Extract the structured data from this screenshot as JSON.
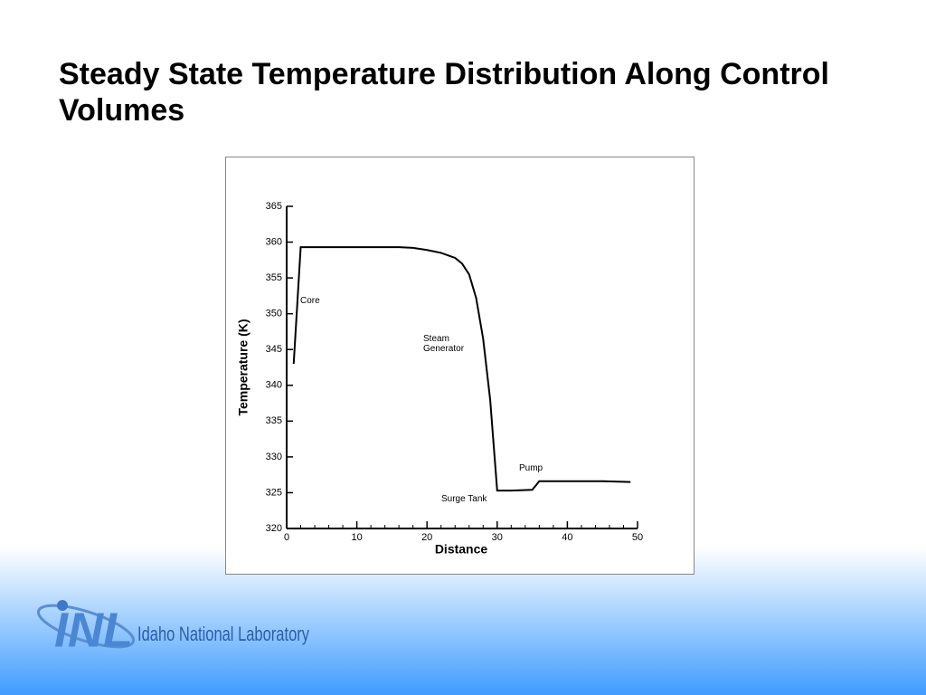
{
  "chart_data": {
    "type": "line",
    "title": "Steady State Temperature Distribution Along Control Volumes",
    "x_label": "Distance",
    "y_label": "Temperature (K)",
    "x": [
      1,
      2,
      4,
      8,
      12,
      16,
      18,
      20,
      22,
      24,
      25,
      26,
      27,
      28,
      29,
      30,
      32,
      35,
      36,
      40,
      45,
      49
    ],
    "values": [
      343,
      359.3,
      359.3,
      359.3,
      359.3,
      359.3,
      359.2,
      358.9,
      358.5,
      357.8,
      357,
      355.5,
      352.2,
      346.5,
      338,
      325.3,
      325.3,
      325.4,
      326.6,
      326.6,
      326.6,
      326.5
    ],
    "color": "#000000",
    "xlim": [
      0,
      50
    ],
    "xticks": [
      0,
      10,
      20,
      30,
      40,
      50
    ],
    "xminorticks": [
      2,
      4,
      6,
      8,
      12,
      14,
      16,
      18,
      22,
      24,
      26,
      28,
      32,
      34,
      36,
      38,
      42,
      44,
      46,
      48
    ],
    "ylim": [
      320,
      365
    ],
    "yticks": [
      320,
      325,
      330,
      335,
      340,
      345,
      350,
      355,
      360,
      365
    ],
    "annotations": [
      "Core",
      "Steam Generator",
      "Surge Tank",
      "Pump"
    ]
  },
  "footer": {
    "logo": "INL",
    "organization": "Idaho National Laboratory"
  }
}
